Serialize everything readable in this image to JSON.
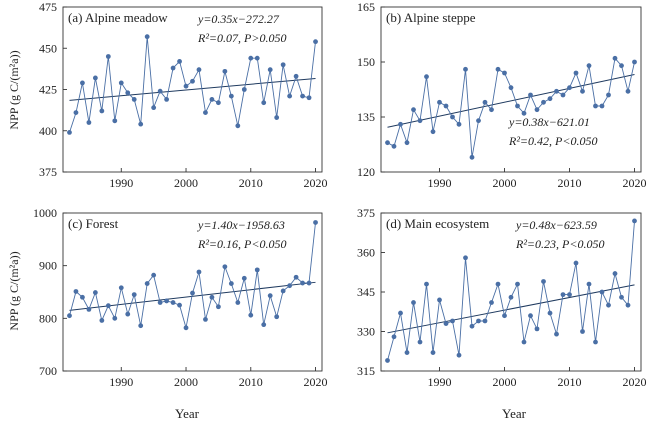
{
  "figure": {
    "ylabel": "NPP (g C/(m²a))",
    "xlabel": "Year",
    "line_color": "#4a6fa5",
    "marker_color": "#4a6fa5",
    "fit_color": "#1f3a5f"
  },
  "chart_data": [
    {
      "type": "line",
      "title": "(a) Alpine meadow",
      "equation": "y=0.35x−272.27",
      "stats": "R²=0.07, P>0.050",
      "equation_pos": "top-right",
      "xlim": [
        1981,
        2021
      ],
      "ylim": [
        375,
        475
      ],
      "yticks": [
        375,
        400,
        425,
        450,
        475
      ],
      "xticks": [
        1990,
        2000,
        2010,
        2020
      ],
      "x": [
        1982,
        1983,
        1984,
        1985,
        1986,
        1987,
        1988,
        1989,
        1990,
        1991,
        1992,
        1993,
        1994,
        1995,
        1996,
        1997,
        1998,
        1999,
        2000,
        2001,
        2002,
        2003,
        2004,
        2005,
        2006,
        2007,
        2008,
        2009,
        2010,
        2011,
        2012,
        2013,
        2014,
        2015,
        2016,
        2017,
        2018,
        2019,
        2020
      ],
      "y": [
        399,
        411,
        429,
        405,
        432,
        412,
        445,
        406,
        429,
        423,
        419,
        404,
        457,
        414,
        424,
        419,
        438,
        442,
        427,
        430,
        437,
        411,
        419,
        417,
        436,
        421,
        403,
        425,
        444,
        444,
        417,
        437,
        408,
        440,
        421,
        433,
        421,
        420,
        454
      ],
      "fit": [
        1982,
        418.4,
        2020,
        431.7
      ]
    },
    {
      "type": "line",
      "title": "(b) Alpine steppe",
      "equation": "y=0.38x−621.01",
      "stats": "R²=0.42, P<0.050",
      "equation_pos": "bottom-right",
      "xlim": [
        1981,
        2021
      ],
      "ylim": [
        120,
        165
      ],
      "yticks": [
        120,
        135,
        150,
        165
      ],
      "xticks": [
        1990,
        2000,
        2010,
        2020
      ],
      "x": [
        1982,
        1983,
        1984,
        1985,
        1986,
        1987,
        1988,
        1989,
        1990,
        1991,
        1992,
        1993,
        1994,
        1995,
        1996,
        1997,
        1998,
        1999,
        2000,
        2001,
        2002,
        2003,
        2004,
        2005,
        2006,
        2007,
        2008,
        2009,
        2010,
        2011,
        2012,
        2013,
        2014,
        2015,
        2016,
        2017,
        2018,
        2019,
        2020
      ],
      "y": [
        128,
        127,
        133,
        128,
        137,
        134,
        146,
        131,
        139,
        138,
        135,
        133,
        148,
        124,
        134,
        139,
        137,
        148,
        147,
        143,
        138,
        136,
        141,
        137,
        139,
        140,
        142,
        141,
        143,
        147,
        142,
        149,
        138,
        138,
        141,
        151,
        149,
        142,
        150
      ],
      "fit": [
        1982,
        132.2,
        2020,
        146.6
      ]
    },
    {
      "type": "line",
      "title": "(c) Forest",
      "equation": "y=1.40x−1958.63",
      "stats": "R²=0.16, P<0.050",
      "equation_pos": "top-right",
      "xlim": [
        1981,
        2021
      ],
      "ylim": [
        700,
        1000
      ],
      "yticks": [
        700,
        800,
        900,
        1000
      ],
      "xticks": [
        1990,
        2000,
        2010,
        2020
      ],
      "x": [
        1982,
        1983,
        1984,
        1985,
        1986,
        1987,
        1988,
        1989,
        1990,
        1991,
        1992,
        1993,
        1994,
        1995,
        1996,
        1997,
        1998,
        1999,
        2000,
        2001,
        2002,
        2003,
        2004,
        2005,
        2006,
        2007,
        2008,
        2009,
        2010,
        2011,
        2012,
        2013,
        2014,
        2015,
        2016,
        2017,
        2018,
        2019,
        2020
      ],
      "y": [
        805,
        851,
        840,
        817,
        849,
        796,
        824,
        800,
        858,
        808,
        845,
        786,
        866,
        882,
        830,
        833,
        830,
        825,
        782,
        848,
        888,
        798,
        840,
        822,
        898,
        866,
        830,
        876,
        806,
        892,
        788,
        843,
        803,
        852,
        862,
        878,
        867,
        867,
        982
      ],
      "fit": [
        1982,
        815.2,
        2020,
        868.4
      ]
    },
    {
      "type": "line",
      "title": "(d) Main ecosystem",
      "equation": "y=0.48x−623.59",
      "stats": "R²=0.23, P<0.050",
      "equation_pos": "top-right",
      "xlim": [
        1981,
        2021
      ],
      "ylim": [
        315,
        375
      ],
      "yticks": [
        315,
        330,
        345,
        360,
        375
      ],
      "xticks": [
        1990,
        2000,
        2010,
        2020
      ],
      "x": [
        1982,
        1983,
        1984,
        1985,
        1986,
        1987,
        1988,
        1989,
        1990,
        1991,
        1992,
        1993,
        1994,
        1995,
        1996,
        1997,
        1998,
        1999,
        2000,
        2001,
        2002,
        2003,
        2004,
        2005,
        2006,
        2007,
        2008,
        2009,
        2010,
        2011,
        2012,
        2013,
        2014,
        2015,
        2016,
        2017,
        2018,
        2019,
        2020
      ],
      "y": [
        319,
        328,
        337,
        322,
        341,
        326,
        348,
        322,
        342,
        333,
        334,
        321,
        358,
        332,
        334,
        334,
        341,
        348,
        336,
        343,
        348,
        326,
        336,
        331,
        349,
        337,
        329,
        344,
        344,
        356,
        330,
        348,
        326,
        345,
        340,
        352,
        343,
        340,
        372
      ],
      "fit": [
        1982,
        329.5,
        2020,
        347.7
      ]
    }
  ]
}
